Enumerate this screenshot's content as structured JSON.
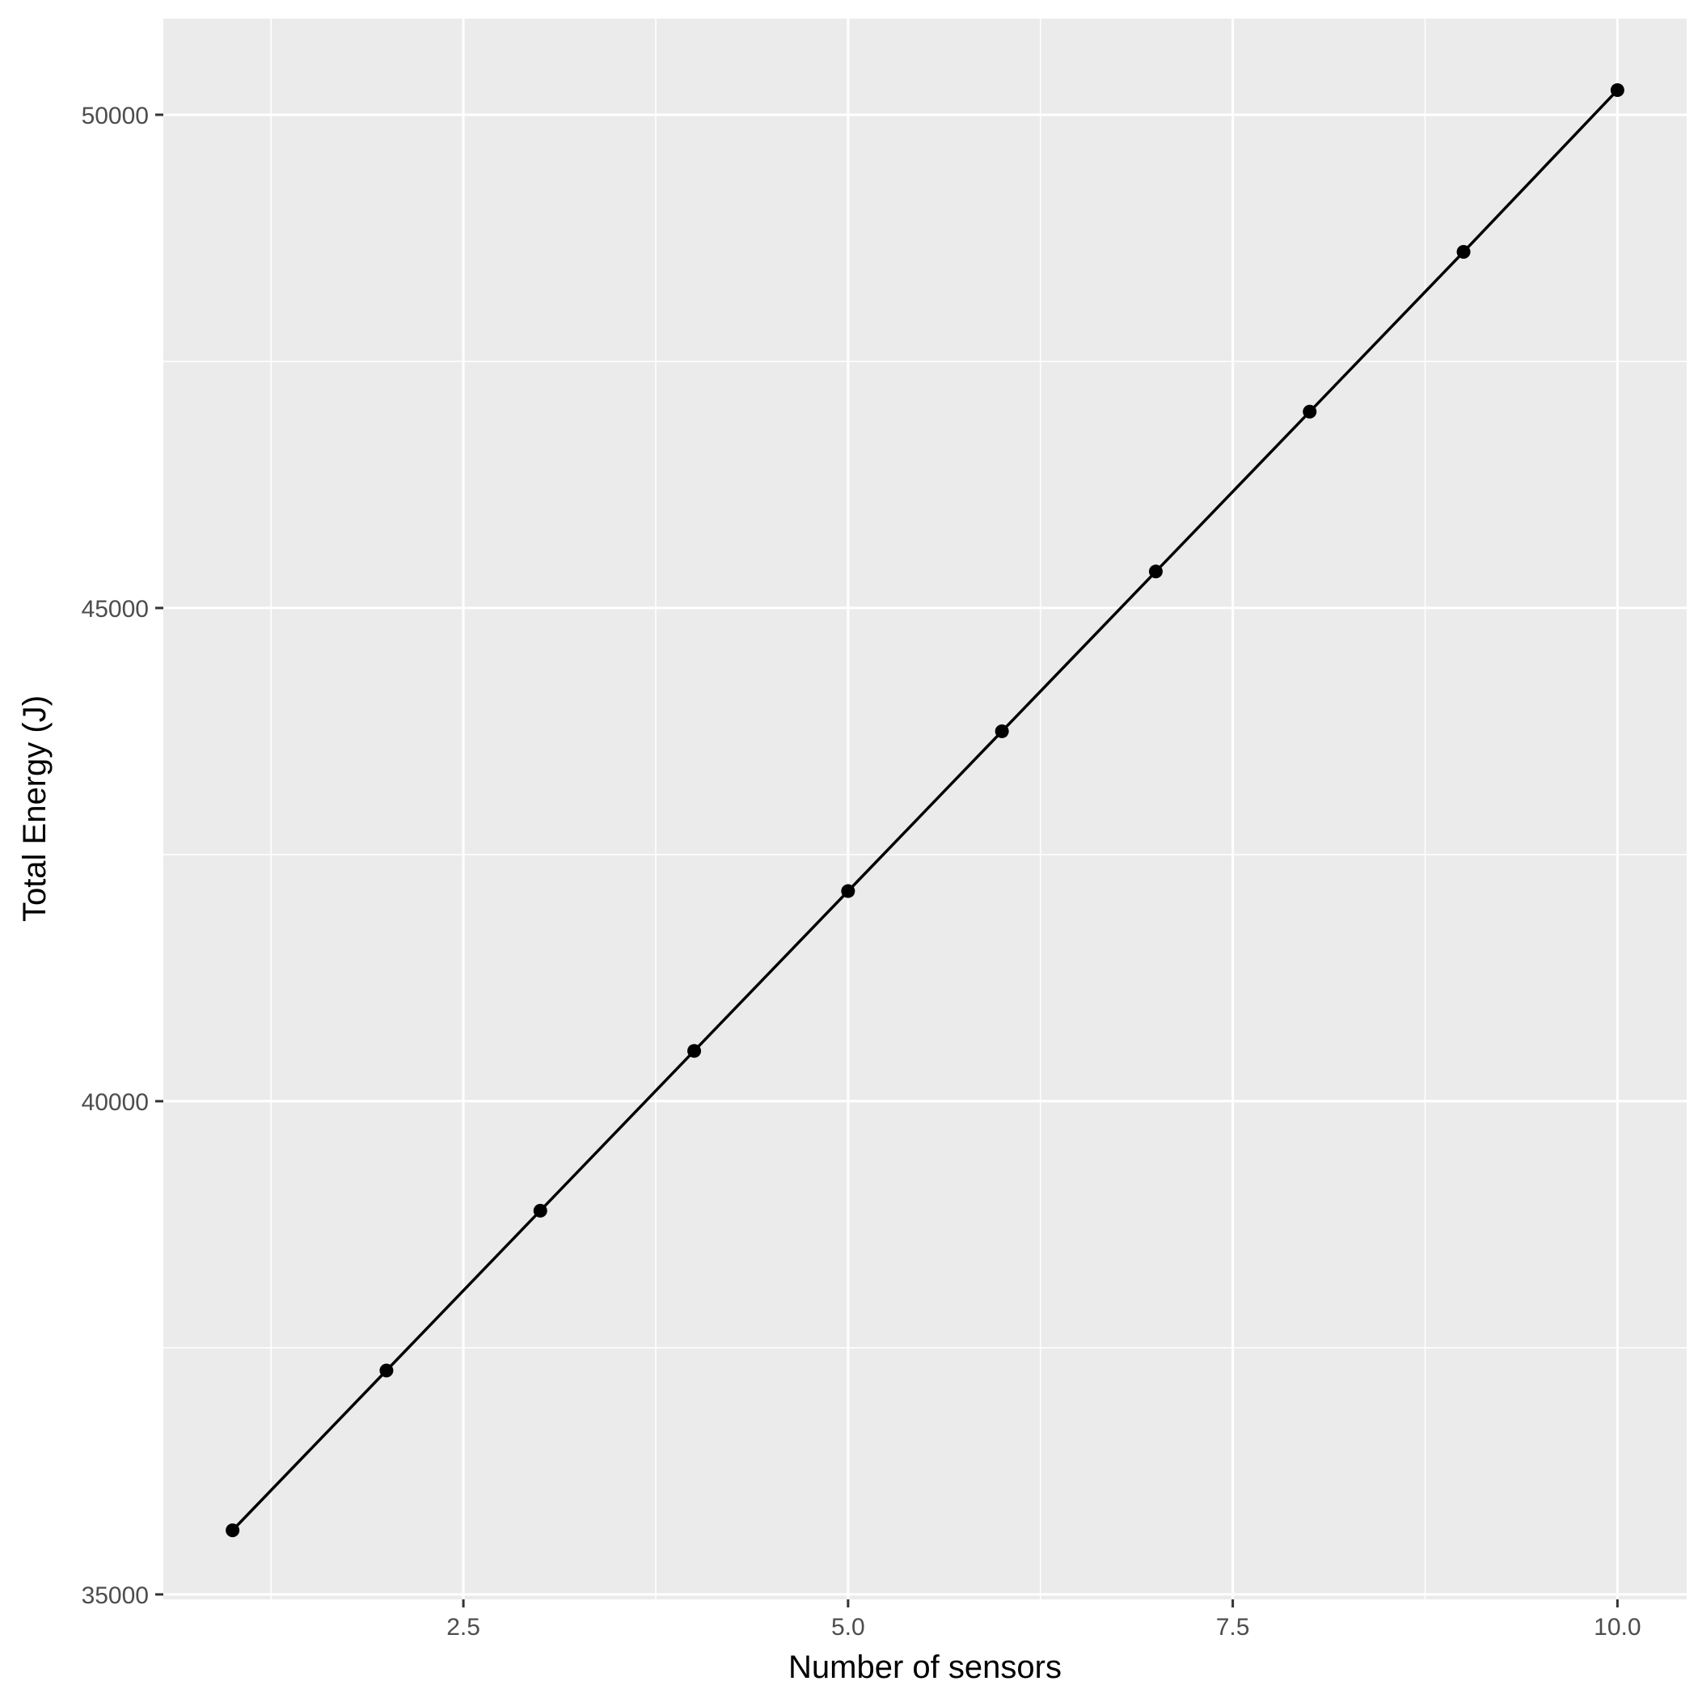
{
  "chart_data": {
    "type": "line",
    "title": "",
    "xlabel": "Number of sensors",
    "ylabel": "Total Energy (J)",
    "x": [
      1,
      2,
      3,
      4,
      5,
      6,
      7,
      8,
      9,
      10
    ],
    "series": [
      {
        "values": [
          35650,
          37270,
          38890,
          40510,
          42130,
          43750,
          45370,
          46990,
          48610,
          50250
        ]
      }
    ],
    "xlim": [
      0.55,
      10.45
    ],
    "ylim": [
      34950,
      50975
    ],
    "x_ticks": [
      {
        "value": 2.5,
        "label": "2.5"
      },
      {
        "value": 5.0,
        "label": "5.0"
      },
      {
        "value": 7.5,
        "label": "7.5"
      },
      {
        "value": 10.0,
        "label": "10.0"
      }
    ],
    "x_minor_ticks": [
      1.25,
      3.75,
      6.25,
      8.75
    ],
    "y_ticks": [
      {
        "value": 35000,
        "label": "35000"
      },
      {
        "value": 40000,
        "label": "40000"
      },
      {
        "value": 45000,
        "label": "45000"
      },
      {
        "value": 50000,
        "label": "50000"
      }
    ],
    "y_minor_ticks": [
      37500,
      42500,
      47500
    ],
    "grid": true,
    "legend": "none",
    "colors": {
      "panel": "#ebebeb",
      "grid": "#ffffff",
      "line": "#000000",
      "point": "#000000",
      "tick_text": "#4d4d4d",
      "axis_title": "#000000"
    }
  }
}
